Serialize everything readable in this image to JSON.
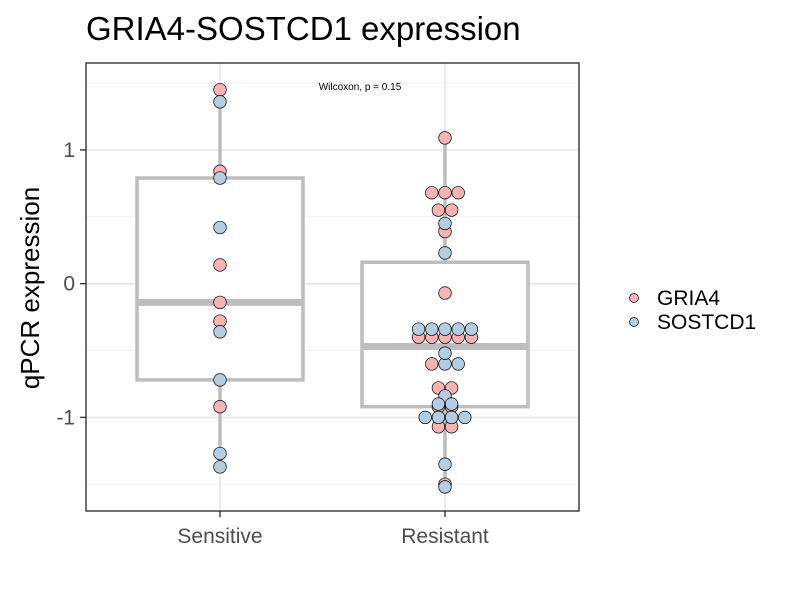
{
  "chart_data": {
    "type": "box",
    "title": "GRIA4-SOSTCD1 expression",
    "xlabel": "",
    "ylabel": "qPCR expression",
    "categories": [
      "Sensitive",
      "Resistant"
    ],
    "ylim": [
      -1.7,
      1.65
    ],
    "y_ticks": [
      -1,
      0,
      1
    ],
    "y_tick_labels": [
      "-1",
      "0",
      "1"
    ],
    "grid": true,
    "annotation": "Wilcoxon, p = 0.15",
    "legend_position": "right",
    "boxes": [
      {
        "category": "Sensitive",
        "lower_whisker": -1.37,
        "q1": -0.72,
        "median": -0.14,
        "q3": 0.79,
        "upper_whisker": 1.45
      },
      {
        "category": "Resistant",
        "lower_whisker": -1.52,
        "q1": -0.92,
        "median": -0.47,
        "q3": 0.16,
        "upper_whisker": 1.09
      }
    ],
    "series": [
      {
        "name": "GRIA4",
        "color": "#F8B4B4",
        "points": [
          {
            "x": "Sensitive",
            "y": 1.45
          },
          {
            "x": "Sensitive",
            "y": 0.84
          },
          {
            "x": "Sensitive",
            "y": 0.14
          },
          {
            "x": "Sensitive",
            "y": -0.14
          },
          {
            "x": "Sensitive",
            "y": -0.28
          },
          {
            "x": "Sensitive",
            "y": -0.92
          },
          {
            "x": "Resistant",
            "y": 1.09
          },
          {
            "x": "Resistant",
            "y": 0.68
          },
          {
            "x": "Resistant",
            "y": 0.68
          },
          {
            "x": "Resistant",
            "y": 0.68
          },
          {
            "x": "Resistant",
            "y": 0.55
          },
          {
            "x": "Resistant",
            "y": 0.55
          },
          {
            "x": "Resistant",
            "y": 0.39
          },
          {
            "x": "Resistant",
            "y": -0.07
          },
          {
            "x": "Resistant",
            "y": -0.4
          },
          {
            "x": "Resistant",
            "y": -0.4
          },
          {
            "x": "Resistant",
            "y": -0.4
          },
          {
            "x": "Resistant",
            "y": -0.4
          },
          {
            "x": "Resistant",
            "y": -0.4
          },
          {
            "x": "Resistant",
            "y": -0.6
          },
          {
            "x": "Resistant",
            "y": -0.78
          },
          {
            "x": "Resistant",
            "y": -0.78
          },
          {
            "x": "Resistant",
            "y": -0.92
          },
          {
            "x": "Resistant",
            "y": -0.92
          },
          {
            "x": "Resistant",
            "y": -1.07
          },
          {
            "x": "Resistant",
            "y": -1.07
          },
          {
            "x": "Resistant",
            "y": -1.5
          }
        ]
      },
      {
        "name": "SOSTCD1",
        "color": "#B3CDE3",
        "points": [
          {
            "x": "Sensitive",
            "y": 1.36
          },
          {
            "x": "Sensitive",
            "y": 0.79
          },
          {
            "x": "Sensitive",
            "y": 0.42
          },
          {
            "x": "Sensitive",
            "y": -0.36
          },
          {
            "x": "Sensitive",
            "y": -0.72
          },
          {
            "x": "Sensitive",
            "y": -1.27
          },
          {
            "x": "Sensitive",
            "y": -1.37
          },
          {
            "x": "Resistant",
            "y": 0.45
          },
          {
            "x": "Resistant",
            "y": 0.23
          },
          {
            "x": "Resistant",
            "y": -0.34
          },
          {
            "x": "Resistant",
            "y": -0.34
          },
          {
            "x": "Resistant",
            "y": -0.34
          },
          {
            "x": "Resistant",
            "y": -0.34
          },
          {
            "x": "Resistant",
            "y": -0.34
          },
          {
            "x": "Resistant",
            "y": -0.52
          },
          {
            "x": "Resistant",
            "y": -0.6
          },
          {
            "x": "Resistant",
            "y": -0.6
          },
          {
            "x": "Resistant",
            "y": -0.84
          },
          {
            "x": "Resistant",
            "y": -0.9
          },
          {
            "x": "Resistant",
            "y": -0.9
          },
          {
            "x": "Resistant",
            "y": -1.0
          },
          {
            "x": "Resistant",
            "y": -1.0
          },
          {
            "x": "Resistant",
            "y": -1.0
          },
          {
            "x": "Resistant",
            "y": -1.0
          },
          {
            "x": "Resistant",
            "y": -1.35
          },
          {
            "x": "Resistant",
            "y": -1.52
          }
        ]
      }
    ]
  }
}
